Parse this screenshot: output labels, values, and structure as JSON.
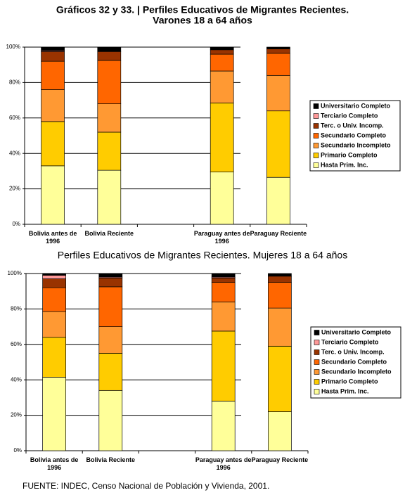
{
  "chart_data": [
    {
      "type": "stacked_bar",
      "title": "Gráficos 32 y 33. | Perfiles Educativos de Migrantes Recientes.",
      "subtitle": "Varones 18 a 64 años",
      "categories": [
        "Bolivia antes de 1996",
        "Bolivia Reciente",
        null,
        "Paraguay antes de 1996",
        "Paraguay Reciente"
      ],
      "series": [
        {
          "name": "Hasta Prim. Inc.",
          "color": "#ffff99",
          "values": [
            33,
            30.5,
            null,
            29.5,
            26.5
          ]
        },
        {
          "name": "Primario Completo",
          "color": "#ffcc00",
          "values": [
            25,
            21.5,
            null,
            39,
            37.5
          ]
        },
        {
          "name": "Secundario Incompleto",
          "color": "#ff9933",
          "values": [
            18,
            16,
            null,
            18,
            20
          ]
        },
        {
          "name": "Secundario Completo",
          "color": "#ff6600",
          "values": [
            16,
            24.5,
            null,
            9.5,
            12.5
          ]
        },
        {
          "name": "Terc. o Univ. Incomp.",
          "color": "#993300",
          "values": [
            5.5,
            5,
            null,
            2.5,
            2.5
          ]
        },
        {
          "name": "Terciario Completo",
          "color": "#ff9999",
          "values": [
            0.5,
            0,
            null,
            0,
            0
          ]
        },
        {
          "name": "Universitario Completo",
          "color": "#000000",
          "values": [
            2,
            2.5,
            null,
            1.5,
            1
          ]
        }
      ],
      "ylim": [
        0,
        100
      ],
      "yticks": [
        {
          "value": 0,
          "label": "0%"
        },
        {
          "value": 20,
          "label": "20%"
        },
        {
          "value": 40,
          "label": "40%"
        },
        {
          "value": 60,
          "label": "60%"
        },
        {
          "value": 80,
          "label": "80%"
        },
        {
          "value": 100,
          "label": "100%"
        }
      ],
      "grid": true,
      "legend": "right"
    },
    {
      "type": "stacked_bar",
      "title": "Perfiles Educativos de Migrantes Recientes. Mujeres 18 a 64 años",
      "categories": [
        "Bolivia antes de 1996",
        "Bolivia Reciente",
        null,
        "Paraguay antes de 1996",
        "Paraguay Reciente"
      ],
      "series": [
        {
          "name": "Hasta Prim. Inc.",
          "color": "#ffff99",
          "values": [
            41.5,
            34,
            null,
            28,
            22
          ]
        },
        {
          "name": "Primario Completo",
          "color": "#ffcc00",
          "values": [
            22.5,
            21,
            null,
            39.5,
            37
          ]
        },
        {
          "name": "Secundario Incompleto",
          "color": "#ff9933",
          "values": [
            14.5,
            15,
            null,
            16.5,
            21.5
          ]
        },
        {
          "name": "Secundario Completo",
          "color": "#ff6600",
          "values": [
            13.5,
            22.5,
            null,
            11,
            14.5
          ]
        },
        {
          "name": "Terc. o Univ. Incomp.",
          "color": "#993300",
          "values": [
            5,
            5,
            null,
            2.5,
            3.5
          ]
        },
        {
          "name": "Terciario Completo",
          "color": "#ff9999",
          "values": [
            2,
            0.5,
            null,
            0.5,
            0
          ]
        },
        {
          "name": "Universitario Completo",
          "color": "#000000",
          "values": [
            1,
            2,
            null,
            2,
            1.5
          ]
        }
      ],
      "ylim": [
        0,
        100
      ],
      "yticks": [
        {
          "value": 0,
          "label": "0%"
        },
        {
          "value": 20,
          "label": "20%"
        },
        {
          "value": 40,
          "label": "40%"
        },
        {
          "value": 60,
          "label": "60%"
        },
        {
          "value": 80,
          "label": "80%"
        },
        {
          "value": 100,
          "label": "100%"
        }
      ],
      "grid": true,
      "legend": "right"
    }
  ],
  "source": "FUENTE: INDEC, Censo Nacional de Población y Vivienda, 2001."
}
